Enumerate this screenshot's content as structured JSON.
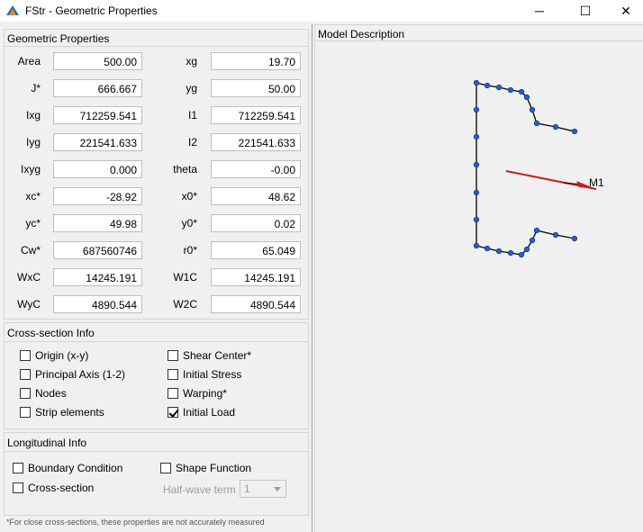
{
  "window": {
    "title": "FStr - Geometric Properties",
    "minimize": "─",
    "maximize": "☐",
    "close": "✕"
  },
  "geom": {
    "title": "Geometric Properties",
    "rows": [
      {
        "l1": "Area",
        "v1": "500.00",
        "l2": "xg",
        "v2": "19.70"
      },
      {
        "l1": "J*",
        "v1": "666.667",
        "l2": "yg",
        "v2": "50.00"
      },
      {
        "l1": "Ixg",
        "v1": "712259.541",
        "l2": "I1",
        "v2": "712259.541"
      },
      {
        "l1": "Iyg",
        "v1": "221541.633",
        "l2": "I2",
        "v2": "221541.633"
      },
      {
        "l1": "Ixyg",
        "v1": "0.000",
        "l2": "theta",
        "v2": "-0.00"
      },
      {
        "l1": "xc*",
        "v1": "-28.92",
        "l2": "x0*",
        "v2": "48.62"
      },
      {
        "l1": "yc*",
        "v1": "49.98",
        "l2": "y0*",
        "v2": "0.02"
      },
      {
        "l1": "Cw*",
        "v1": "687560746",
        "l2": "r0*",
        "v2": "65.049"
      },
      {
        "l1": "WxC",
        "v1": "14245.191",
        "l2": "W1C",
        "v2": "14245.191"
      },
      {
        "l1": "WyC",
        "v1": "4890.544",
        "l2": "W2C",
        "v2": "4890.544"
      }
    ]
  },
  "cross": {
    "title": "Cross-section Info",
    "items": [
      {
        "label": "Origin (x-y)",
        "checked": false
      },
      {
        "label": "Shear Center*",
        "checked": false
      },
      {
        "label": "Principal Axis (1-2)",
        "checked": false
      },
      {
        "label": "Initial Stress",
        "checked": false
      },
      {
        "label": "Nodes",
        "checked": false
      },
      {
        "label": "Warping*",
        "checked": false
      },
      {
        "label": "Strip elements",
        "checked": false
      },
      {
        "label": "Initial Load",
        "checked": true
      }
    ]
  },
  "longi": {
    "title": "Longitudinal Info",
    "boundary": "Boundary Condition",
    "shape": "Shape Function",
    "cross": "Cross-section",
    "halfwave_label": "Half-wave term",
    "halfwave_value": "1"
  },
  "footnote": "*For close cross-sections, these properties are not accurately measured",
  "model": {
    "title": "Model Description",
    "load_label": "M1",
    "colors": {
      "node": "#1f5fd6",
      "line": "#000000",
      "arrow": "#d11a1a"
    }
  }
}
